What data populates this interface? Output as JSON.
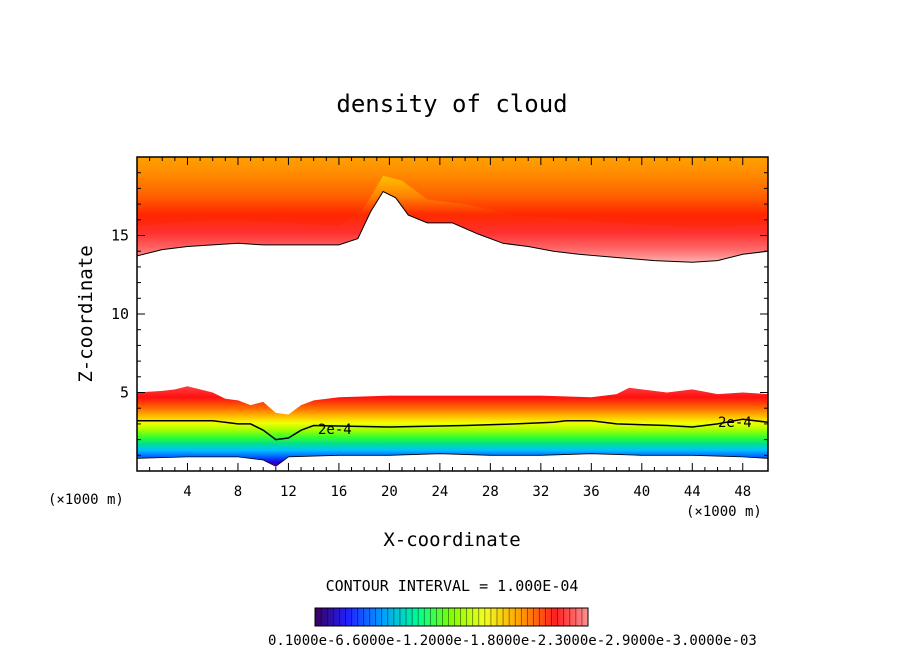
{
  "chart_data": {
    "type": "contour",
    "title": "density of cloud",
    "xlabel": "X-coordinate",
    "ylabel": "Z-coordinate",
    "x_unit_left": "(×1000 m)",
    "x_unit_right": "(×1000 m)",
    "xlim": [
      0,
      50
    ],
    "ylim": [
      0,
      20
    ],
    "xticks": [
      4,
      8,
      12,
      16,
      20,
      24,
      28,
      32,
      36,
      40,
      44,
      48
    ],
    "yticks": [
      5,
      10,
      15
    ],
    "contour_interval_text": "CONTOUR INTERVAL = 1.000E-04",
    "contour_label": "2e-4",
    "colorbar_label_text": "0.1000e-6.6000e-1.2000e-1.8000e-2.3000e-2.9000e-3.0000e-03",
    "colormap": [
      "#4b0082",
      "#0000ff",
      "#00a0ff",
      "#00ff80",
      "#80ff00",
      "#ffff00",
      "#ffa500",
      "#ff0000",
      "#ff8080"
    ],
    "upper_layer_bottom": [
      [
        0,
        13.7
      ],
      [
        2,
        14.1
      ],
      [
        4,
        14.3
      ],
      [
        6,
        14.4
      ],
      [
        8,
        14.5
      ],
      [
        10,
        14.4
      ],
      [
        12,
        14.4
      ],
      [
        14,
        14.4
      ],
      [
        16,
        14.4
      ],
      [
        17.5,
        14.8
      ],
      [
        18.5,
        16.5
      ],
      [
        19.5,
        17.8
      ],
      [
        20.5,
        17.4
      ],
      [
        21.5,
        16.3
      ],
      [
        23,
        15.8
      ],
      [
        25,
        15.8
      ],
      [
        27,
        15.1
      ],
      [
        29,
        14.5
      ],
      [
        31,
        14.3
      ],
      [
        33,
        14.0
      ],
      [
        35,
        13.8
      ],
      [
        38,
        13.6
      ],
      [
        41,
        13.4
      ],
      [
        44,
        13.3
      ],
      [
        46,
        13.4
      ],
      [
        48,
        13.8
      ],
      [
        50,
        14.0
      ]
    ],
    "upper_layer_dense_bottom": [
      [
        0,
        15.6
      ],
      [
        4,
        15.9
      ],
      [
        8,
        16.0
      ],
      [
        12,
        15.8
      ],
      [
        16,
        15.6
      ],
      [
        18,
        16.8
      ],
      [
        19.5,
        18.8
      ],
      [
        21,
        18.5
      ],
      [
        23,
        17.3
      ],
      [
        26,
        17.0
      ],
      [
        30,
        16.3
      ],
      [
        35,
        16.0
      ],
      [
        40,
        15.7
      ],
      [
        45,
        15.5
      ],
      [
        50,
        15.7
      ]
    ],
    "lower_layer_top": [
      [
        0,
        5.0
      ],
      [
        2,
        5.1
      ],
      [
        3,
        5.2
      ],
      [
        4,
        5.4
      ],
      [
        5,
        5.2
      ],
      [
        6,
        5.0
      ],
      [
        7,
        4.6
      ],
      [
        8,
        4.5
      ],
      [
        9,
        4.2
      ],
      [
        10,
        4.4
      ],
      [
        11,
        3.7
      ],
      [
        12,
        3.6
      ],
      [
        13,
        4.2
      ],
      [
        14,
        4.5
      ],
      [
        16,
        4.7
      ],
      [
        20,
        4.8
      ],
      [
        24,
        4.8
      ],
      [
        28,
        4.8
      ],
      [
        32,
        4.8
      ],
      [
        36,
        4.7
      ],
      [
        38,
        4.9
      ],
      [
        39,
        5.3
      ],
      [
        40,
        5.2
      ],
      [
        42,
        5.0
      ],
      [
        44,
        5.2
      ],
      [
        46,
        4.9
      ],
      [
        48,
        5.0
      ],
      [
        50,
        4.9
      ]
    ],
    "contour_2e-4": [
      [
        0,
        3.2
      ],
      [
        3,
        3.2
      ],
      [
        6,
        3.2
      ],
      [
        8,
        3.0
      ],
      [
        9,
        3.0
      ],
      [
        10,
        2.6
      ],
      [
        11,
        2.0
      ],
      [
        12,
        2.1
      ],
      [
        13,
        2.6
      ],
      [
        14,
        2.9
      ],
      [
        20,
        2.8
      ],
      [
        26,
        2.9
      ],
      [
        30,
        3.0
      ],
      [
        33,
        3.1
      ],
      [
        34,
        3.2
      ],
      [
        36,
        3.2
      ],
      [
        38,
        3.0
      ],
      [
        42,
        2.9
      ],
      [
        44,
        2.8
      ],
      [
        46,
        3.0
      ],
      [
        48,
        3.3
      ],
      [
        50,
        3.1
      ]
    ],
    "lower_layer_bottom": [
      [
        0,
        0.8
      ],
      [
        4,
        0.9
      ],
      [
        8,
        0.9
      ],
      [
        10,
        0.7
      ],
      [
        11,
        0.3
      ],
      [
        12,
        0.9
      ],
      [
        16,
        1.0
      ],
      [
        20,
        1.0
      ],
      [
        24,
        1.1
      ],
      [
        28,
        1.0
      ],
      [
        32,
        1.0
      ],
      [
        36,
        1.1
      ],
      [
        40,
        1.0
      ],
      [
        44,
        1.0
      ],
      [
        48,
        0.9
      ],
      [
        50,
        0.8
      ]
    ]
  }
}
